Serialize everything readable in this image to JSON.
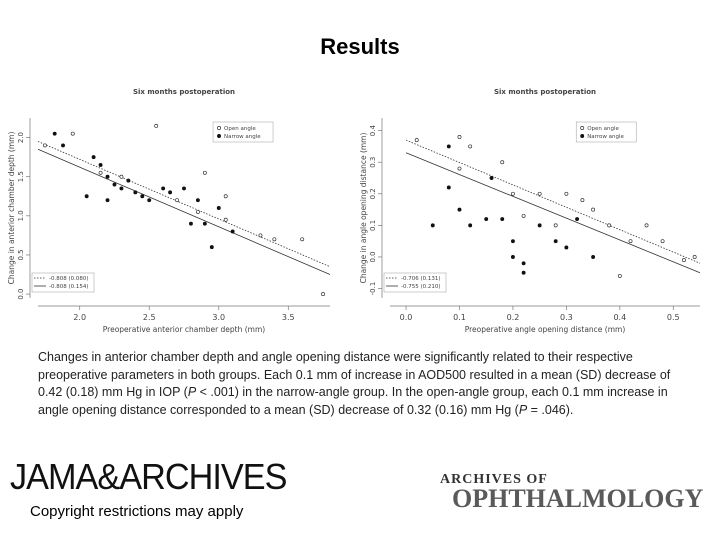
{
  "header": {
    "title": "Results"
  },
  "chart_data": [
    {
      "type": "scatter",
      "title": "Six months postoperation",
      "xlabel": "Preoperative anterior chamber depth (mm)",
      "ylabel": "Change in anterior chamber depth (mm)",
      "xlim": [
        1.7,
        3.8
      ],
      "ylim": [
        -0.05,
        2.25
      ],
      "xticks": [
        {
          "value": 2,
          "label": "2.0"
        },
        {
          "value": 2.5,
          "label": "2.5"
        },
        {
          "value": 3,
          "label": "3.0"
        },
        {
          "value": 3.5,
          "label": "3.5"
        }
      ],
      "yticks": [
        {
          "value": 0,
          "label": "0.0"
        },
        {
          "value": 0.5,
          "label": "0.5"
        },
        {
          "value": 1,
          "label": "1.0"
        },
        {
          "value": 1.5,
          "label": "1.5"
        },
        {
          "value": 2,
          "label": "2.0"
        }
      ],
      "legend": "upper right",
      "fit_legend": "lower left",
      "series": [
        {
          "name": "Open angle",
          "color": "#333333",
          "marker": "open",
          "x": [
            1.75,
            1.95,
            2.15,
            2.3,
            2.55,
            2.7,
            2.85,
            2.9,
            3.05,
            3.05,
            3.3,
            3.4,
            3.6,
            3.75
          ],
          "values": [
            1.9,
            2.05,
            1.55,
            1.5,
            2.15,
            1.2,
            1.05,
            1.55,
            1.25,
            0.95,
            0.75,
            0.7,
            0.7,
            0.0
          ]
        },
        {
          "name": "Narrow angle",
          "color": "#111111",
          "marker": "filled",
          "x": [
            1.82,
            1.88,
            2.1,
            2.15,
            2.2,
            2.25,
            2.3,
            2.35,
            2.4,
            2.45,
            2.5,
            2.6,
            2.65,
            2.75,
            2.8,
            2.85,
            2.9,
            2.95,
            3.0,
            3.1,
            2.2,
            2.05
          ],
          "values": [
            2.05,
            1.9,
            1.75,
            1.65,
            1.5,
            1.4,
            1.35,
            1.45,
            1.3,
            1.25,
            1.2,
            1.35,
            1.3,
            1.35,
            0.9,
            1.2,
            0.9,
            0.6,
            1.1,
            0.8,
            1.2,
            1.25
          ]
        }
      ],
      "fit_lines": [
        {
          "name": "-0.808 (0.080)",
          "color": "#333333",
          "style": "dotted",
          "x": [
            1.7,
            3.8
          ],
          "values": [
            1.95,
            0.35
          ]
        },
        {
          "name": "-0.808 (0.154)",
          "color": "#333333",
          "style": "solid",
          "x": [
            1.7,
            3.8
          ],
          "values": [
            1.85,
            0.25
          ]
        }
      ]
    },
    {
      "type": "scatter",
      "title": "Six months postoperation",
      "xlabel": "Preoperative angle opening distance (mm)",
      "ylabel": "Change in angle opening distance (mm)",
      "xlim": [
        -0.03,
        0.55
      ],
      "ylim": [
        -0.13,
        0.44
      ],
      "xticks": [
        {
          "value": 0,
          "label": "0.0"
        },
        0.1,
        0.2,
        0.3,
        0.4,
        0.5
      ],
      "yticks": [
        -0.1,
        {
          "value": 0,
          "label": "0.0"
        },
        0.1,
        0.2,
        0.3,
        0.4
      ],
      "legend": "upper right",
      "fit_legend": "lower left",
      "series": [
        {
          "name": "Open angle",
          "color": "#333333",
          "marker": "open",
          "x": [
            0.02,
            0.1,
            0.12,
            0.18,
            0.2,
            0.22,
            0.25,
            0.3,
            0.33,
            0.35,
            0.38,
            0.42,
            0.45,
            0.48,
            0.52,
            0.54,
            0.4,
            0.1,
            0.28
          ],
          "values": [
            0.37,
            0.38,
            0.35,
            0.3,
            0.2,
            0.13,
            0.2,
            0.2,
            0.18,
            0.15,
            0.1,
            0.05,
            0.1,
            0.05,
            -0.01,
            0.0,
            -0.06,
            0.28,
            0.1
          ]
        },
        {
          "name": "Narrow angle",
          "color": "#111111",
          "marker": "filled",
          "x": [
            0.05,
            0.08,
            0.1,
            0.12,
            0.15,
            0.16,
            0.18,
            0.2,
            0.2,
            0.22,
            0.25,
            0.28,
            0.3,
            0.32,
            0.35,
            0.08,
            0.22
          ],
          "values": [
            0.1,
            0.22,
            0.15,
            0.1,
            0.12,
            0.25,
            0.12,
            0.05,
            0.0,
            -0.05,
            0.1,
            0.05,
            0.03,
            0.12,
            0.0,
            0.35,
            -0.02
          ]
        }
      ],
      "fit_lines": [
        {
          "name": "-0.706 (0.131)",
          "color": "#333333",
          "style": "dotted",
          "x": [
            0,
            0.55
          ],
          "values": [
            0.37,
            -0.02
          ]
        },
        {
          "name": "-0.755 (0.210)",
          "color": "#333333",
          "style": "solid",
          "x": [
            0,
            0.55
          ],
          "values": [
            0.33,
            -0.05
          ]
        }
      ]
    }
  ],
  "caption": [
    {
      "text": "Changes in anterior chamber depth and angle opening distance were significantly related to their respective preoperative parameters in both groups. Each 0.1 mm of increase in AOD500 resulted in a mean (SD) decrease of 0.42 (0.18) mm Hg in IOP (",
      "italic": false
    },
    {
      "text": "P",
      "italic": true
    },
    {
      "text": " < .001) in the narrow-angle group. In the open-angle group, each 0.1 mm increase in angle opening distance corresponded to a mean (SD) decrease of 0.32 (0.16) mm Hg (",
      "italic": false
    },
    {
      "text": "P",
      "italic": true
    },
    {
      "text": " = .046).",
      "italic": false
    }
  ],
  "footer": {
    "logo_left": "JAMA&ARCHIVES",
    "copyright": "Copyright restrictions may apply",
    "logo_right_top": "ARCHIVES OF",
    "logo_right_bottom": "OPHTHALMOLOGY"
  }
}
